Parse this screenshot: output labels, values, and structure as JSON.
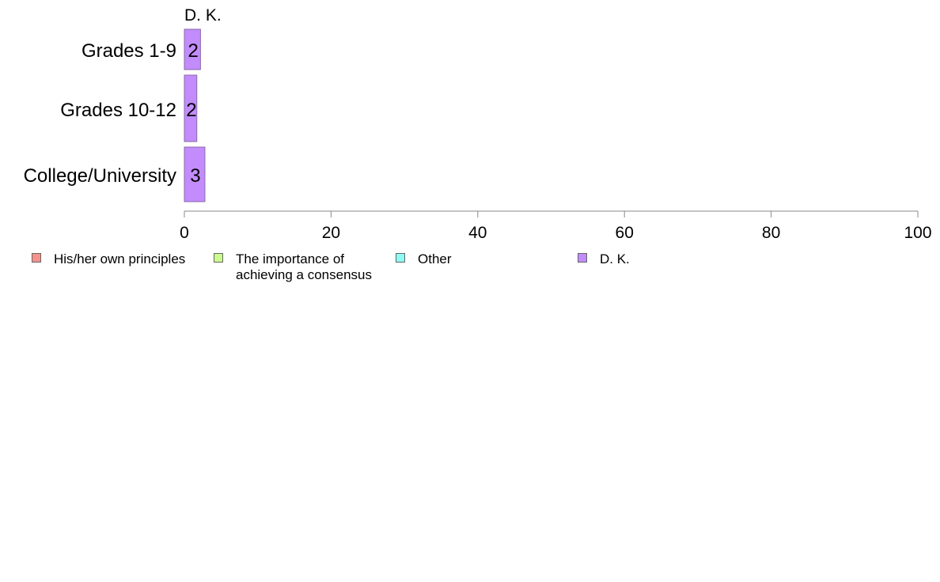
{
  "chart_data": {
    "type": "bar",
    "orientation": "horizontal",
    "stacked": true,
    "title": "",
    "xlabel": "",
    "ylabel": "",
    "xlim": [
      0,
      100
    ],
    "x_ticks": [
      "0",
      "20",
      "40",
      "60",
      "80",
      "100"
    ],
    "categories": [
      "Grades 1-9",
      "Grades 10-12",
      "College/University"
    ],
    "series": [
      {
        "name": "His/her own principles",
        "color": "#f8918b",
        "values": [
          0,
          0,
          0
        ]
      },
      {
        "name": "The importance of\nachieving a consensus",
        "color": "#ccfc8c",
        "values": [
          0,
          0,
          0
        ]
      },
      {
        "name": "Other",
        "color": "#8cfcf4",
        "values": [
          0,
          0,
          0
        ]
      },
      {
        "name": "D. K.",
        "color": "#c28cfc",
        "values": [
          2.2,
          1.7,
          2.8
        ]
      }
    ],
    "data_labels": [
      "2",
      "2",
      "3"
    ],
    "top_series_label": "D. K.",
    "legend_position": "bottom",
    "grid": false
  }
}
